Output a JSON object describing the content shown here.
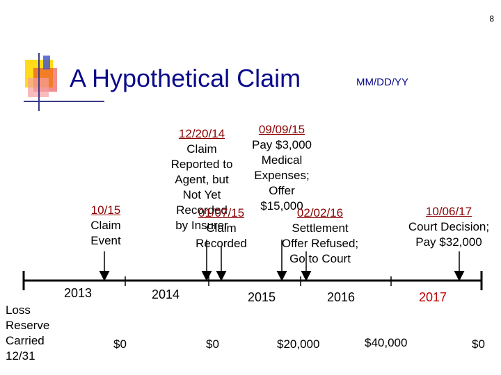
{
  "slide_number": "8",
  "title": "A Hypothetical Claim",
  "subtitle": "MM/DD/YY",
  "events": [
    {
      "date": "10/15",
      "lines": [
        "Claim",
        "Event"
      ]
    },
    {
      "date": "12/20/14",
      "lines": [
        "Claim",
        "Reported to",
        "Agent, but",
        "Not Yet",
        "Recorded",
        "by Insurer"
      ]
    },
    {
      "date": "01/07/15",
      "lines": [
        "Claim",
        "Recorded"
      ]
    },
    {
      "date": "09/09/15",
      "lines": [
        "Pay $3,000",
        "Medical",
        "Expenses;",
        "Offer",
        "$15,000"
      ]
    },
    {
      "date": "02/02/16",
      "lines": [
        "Settlement",
        "Offer Refused;",
        "Go to Court"
      ]
    },
    {
      "date": "10/06/17",
      "lines": [
        "Court Decision;",
        "Pay $32,000"
      ]
    }
  ],
  "years": [
    "2013",
    "2014",
    "2015",
    "2016",
    "2017"
  ],
  "loss_reserve_label": [
    "Loss",
    "Reserve",
    "Carried",
    "12/31"
  ],
  "reserves": [
    "$0",
    "$0",
    "$20,000",
    "$40,000",
    "$0"
  ],
  "colors": {
    "title": "#0b0b8a",
    "date": "#8b0000",
    "year_2017": "#c00000",
    "timeline": "#000000",
    "decor_yellow": "#ffd700",
    "decor_red": "#e63030",
    "decor_blue": "#4a5ac8"
  }
}
